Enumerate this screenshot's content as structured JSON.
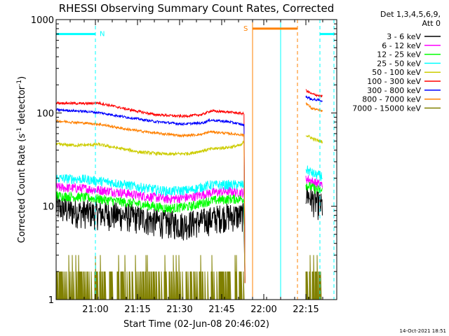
{
  "chart_data": {
    "type": "line",
    "title": "RHESSI Observing Summary Count Rates, Corrected",
    "xlabel": "Start Time (02-Jun-08 20:46:02)",
    "ylabel": "Corrected Count Rate (s",
    "ylabel_sup1": "-1",
    "ylabel_mid": " detector",
    "ylabel_sup2": "-1",
    "ylabel_end": ")",
    "y_scale": "log",
    "ylim": [
      1,
      1000
    ],
    "x_unit": "minutes after 20:46:02",
    "xlim": [
      0,
      100
    ],
    "x_ticks": [
      {
        "value": 14,
        "label": "21:00"
      },
      {
        "value": 29,
        "label": "21:15"
      },
      {
        "value": 44,
        "label": "21:30"
      },
      {
        "value": 59,
        "label": "21:45"
      },
      {
        "value": 74,
        "label": "22:00"
      },
      {
        "value": 89,
        "label": "22:15"
      }
    ],
    "y_ticks": [
      {
        "value": 1,
        "label": "1"
      },
      {
        "value": 10,
        "label": "10"
      },
      {
        "value": 100,
        "label": "100"
      },
      {
        "value": 1000,
        "label": "1000"
      }
    ],
    "legend_header": [
      "Det 1,3,4,5,6,9,",
      "Att 0"
    ],
    "legend_position": "right",
    "footer_date": "14-Oct-2021 18:51",
    "markers": [
      {
        "label": "N",
        "type": "night",
        "color": "#00ffff",
        "spans": [
          [
            0,
            14
          ],
          [
            94,
            99
          ]
        ],
        "y": 700,
        "edges": [
          14,
          94,
          99
        ]
      },
      {
        "label": "S",
        "type": "saa",
        "color": "#ff8000",
        "spans": [
          [
            70,
            86
          ]
        ],
        "y": 800,
        "edges": [
          70,
          86
        ]
      }
    ],
    "solid_lines": [
      {
        "x": 70,
        "color": "#ff8000"
      },
      {
        "x": 80,
        "color": "#00ffff"
      }
    ],
    "series": [
      {
        "name": "3 - 6 keV",
        "color": "#000000",
        "profile": [
          [
            0,
            10
          ],
          [
            5,
            9
          ],
          [
            14,
            8.5
          ],
          [
            25,
            8
          ],
          [
            35,
            7
          ],
          [
            45,
            6.5
          ],
          [
            52,
            7
          ],
          [
            60,
            8
          ],
          [
            67,
            8
          ]
        ],
        "post": [
          [
            89,
            14
          ],
          [
            91,
            12
          ],
          [
            93,
            11
          ],
          [
            95,
            10
          ]
        ],
        "noise": 0.35
      },
      {
        "name": "6 - 12 keV",
        "color": "#ff00ff",
        "profile": [
          [
            0,
            16
          ],
          [
            10,
            15.5
          ],
          [
            20,
            14.5
          ],
          [
            30,
            13
          ],
          [
            40,
            12
          ],
          [
            48,
            12.5
          ],
          [
            55,
            14
          ],
          [
            62,
            14.5
          ],
          [
            67,
            14
          ]
        ],
        "post": [
          [
            89,
            20
          ],
          [
            92,
            18
          ],
          [
            95,
            17
          ]
        ],
        "noise": 0.12
      },
      {
        "name": "12 - 25 keV",
        "color": "#00ff00",
        "profile": [
          [
            0,
            13
          ],
          [
            10,
            12.5
          ],
          [
            20,
            11.5
          ],
          [
            30,
            10.5
          ],
          [
            40,
            9.5
          ],
          [
            48,
            10
          ],
          [
            55,
            11.5
          ],
          [
            62,
            12
          ],
          [
            67,
            12
          ]
        ],
        "post": [
          [
            89,
            17
          ],
          [
            92,
            15.5
          ],
          [
            95,
            14.5
          ]
        ],
        "noise": 0.12
      },
      {
        "name": "25 - 50 keV",
        "color": "#00ffff",
        "profile": [
          [
            0,
            20
          ],
          [
            10,
            19.5
          ],
          [
            20,
            18
          ],
          [
            30,
            16
          ],
          [
            40,
            14.5
          ],
          [
            48,
            15
          ],
          [
            55,
            17
          ],
          [
            62,
            17
          ],
          [
            67,
            17
          ]
        ],
        "post": [
          [
            89,
            25
          ],
          [
            92,
            22
          ],
          [
            95,
            21
          ]
        ],
        "noise": 0.12
      },
      {
        "name": "50 - 100 keV",
        "color": "#cccc00",
        "profile": [
          [
            0,
            46
          ],
          [
            8,
            45
          ],
          [
            15,
            46
          ],
          [
            22,
            42
          ],
          [
            30,
            38
          ],
          [
            40,
            36
          ],
          [
            48,
            37
          ],
          [
            55,
            41
          ],
          [
            62,
            43
          ],
          [
            66,
            45
          ],
          [
            67,
            50
          ]
        ],
        "post": [
          [
            89,
            58
          ],
          [
            92,
            52
          ],
          [
            95,
            49
          ]
        ],
        "noise": 0.04
      },
      {
        "name": "100 - 300 keV",
        "color": "#ff0000",
        "profile": [
          [
            0,
            128
          ],
          [
            10,
            126
          ],
          [
            15,
            128
          ],
          [
            25,
            110
          ],
          [
            35,
            96
          ],
          [
            45,
            92
          ],
          [
            52,
            96
          ],
          [
            55,
            105
          ],
          [
            62,
            102
          ],
          [
            67,
            98
          ]
        ],
        "post": [
          [
            89,
            175
          ],
          [
            91,
            160
          ],
          [
            93,
            155
          ],
          [
            95,
            150
          ]
        ],
        "noise": 0.03
      },
      {
        "name": "300 - 800 keV",
        "color": "#0000ff",
        "profile": [
          [
            0,
            108
          ],
          [
            10,
            104
          ],
          [
            15,
            101
          ],
          [
            25,
            90
          ],
          [
            35,
            81
          ],
          [
            45,
            76
          ],
          [
            52,
            78
          ],
          [
            55,
            84
          ],
          [
            62,
            80
          ],
          [
            67,
            74
          ]
        ],
        "post": [
          [
            89,
            150
          ],
          [
            91,
            140
          ],
          [
            93,
            138
          ],
          [
            95,
            135
          ]
        ],
        "noise": 0.03
      },
      {
        "name": "800 - 7000 keV",
        "color": "#ff8000",
        "profile": [
          [
            0,
            82
          ],
          [
            10,
            78
          ],
          [
            15,
            76
          ],
          [
            25,
            67
          ],
          [
            35,
            61
          ],
          [
            45,
            57
          ],
          [
            52,
            59
          ],
          [
            55,
            63
          ],
          [
            62,
            60
          ],
          [
            67,
            58
          ]
        ],
        "post": [
          [
            89,
            128
          ],
          [
            91,
            112
          ],
          [
            93,
            108
          ],
          [
            95,
            104
          ]
        ],
        "noise": 0.03
      },
      {
        "name": "7000 - 15000 keV",
        "color": "#808000",
        "profile": [
          [
            0,
            2
          ],
          [
            67,
            2
          ]
        ],
        "post": [
          [
            89,
            2
          ],
          [
            95,
            2
          ]
        ],
        "noise": 0
      }
    ]
  }
}
